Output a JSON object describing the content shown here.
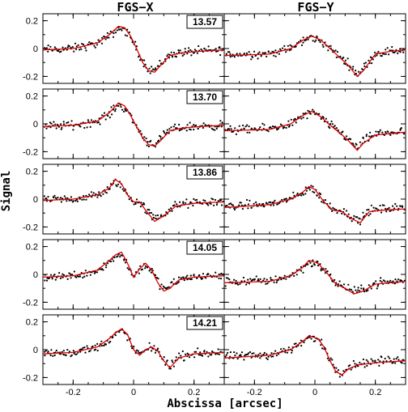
{
  "chart_data": {
    "type": "scatter",
    "columns": [
      {
        "title": "FGS−X"
      },
      {
        "title": "FGS−Y"
      }
    ],
    "xlabel": "Abscissa [arcsec]",
    "ylabel": "Signal",
    "xlim": [
      -0.3,
      0.3
    ],
    "ylim": [
      -0.25,
      0.25
    ],
    "xticks": [
      -0.2,
      0,
      0.2
    ],
    "xtick_labels": [
      "-0.2",
      "0",
      "0.2"
    ],
    "yticks": [
      -0.2,
      0,
      0.2
    ],
    "ytick_labels": [
      "-0.2",
      "0",
      "0.2"
    ],
    "epochs": [
      "13.57",
      "13.70",
      "13.86",
      "14.05",
      "14.21"
    ],
    "model_color": "#e00000",
    "point_color": "#000000",
    "panels": [
      {
        "column": "FGS−X",
        "epoch": "13.57",
        "model": {
          "x": [
            -0.3,
            -0.2,
            -0.12,
            -0.08,
            -0.05,
            -0.03,
            -0.01,
            0.01,
            0.03,
            0.05,
            0.07,
            0.09,
            0.12,
            0.16,
            0.22,
            0.3
          ],
          "y": [
            -0.01,
            0.0,
            0.04,
            0.1,
            0.16,
            0.15,
            0.09,
            0.0,
            -0.1,
            -0.16,
            -0.17,
            -0.12,
            -0.05,
            -0.03,
            -0.02,
            -0.01
          ]
        }
      },
      {
        "column": "FGS−Y",
        "epoch": "13.57",
        "model": {
          "x": [
            -0.3,
            -0.15,
            -0.08,
            -0.04,
            -0.01,
            0.02,
            0.05,
            0.08,
            0.11,
            0.14,
            0.16,
            0.2,
            0.25,
            0.3
          ],
          "y": [
            -0.05,
            -0.04,
            0.0,
            0.06,
            0.09,
            0.06,
            0.0,
            -0.06,
            -0.12,
            -0.2,
            -0.16,
            -0.04,
            -0.02,
            -0.01
          ]
        }
      },
      {
        "column": "FGS−X",
        "epoch": "13.70",
        "model": {
          "x": [
            -0.3,
            -0.2,
            -0.12,
            -0.08,
            -0.05,
            -0.03,
            -0.01,
            0.01,
            0.03,
            0.05,
            0.07,
            0.09,
            0.12,
            0.16,
            0.22,
            0.3
          ],
          "y": [
            -0.02,
            -0.01,
            0.02,
            0.08,
            0.15,
            0.13,
            0.06,
            -0.02,
            -0.1,
            -0.15,
            -0.16,
            -0.12,
            -0.05,
            -0.03,
            -0.02,
            -0.01
          ]
        }
      },
      {
        "column": "FGS−Y",
        "epoch": "13.70",
        "model": {
          "x": [
            -0.3,
            -0.15,
            -0.08,
            -0.04,
            -0.01,
            0.02,
            0.05,
            0.08,
            0.11,
            0.14,
            0.16,
            0.2,
            0.25,
            0.3
          ],
          "y": [
            -0.05,
            -0.04,
            0.0,
            0.06,
            0.09,
            0.05,
            -0.01,
            -0.06,
            -0.12,
            -0.19,
            -0.14,
            -0.08,
            -0.07,
            -0.06
          ]
        }
      },
      {
        "column": "FGS−X",
        "epoch": "13.86",
        "model": {
          "x": [
            -0.3,
            -0.2,
            -0.12,
            -0.08,
            -0.06,
            -0.04,
            -0.02,
            0.0,
            0.02,
            0.04,
            0.07,
            0.1,
            0.14,
            0.2,
            0.3
          ],
          "y": [
            -0.01,
            0.0,
            0.03,
            0.08,
            0.14,
            0.11,
            0.03,
            -0.02,
            -0.02,
            -0.08,
            -0.16,
            -0.12,
            -0.05,
            -0.03,
            -0.02
          ]
        }
      },
      {
        "column": "FGS−Y",
        "epoch": "13.86",
        "model": {
          "x": [
            -0.3,
            -0.15,
            -0.08,
            -0.04,
            -0.02,
            0.0,
            0.03,
            0.06,
            0.09,
            0.12,
            0.15,
            0.18,
            0.22,
            0.3
          ],
          "y": [
            -0.06,
            -0.04,
            0.0,
            0.05,
            0.09,
            0.07,
            -0.02,
            -0.08,
            -0.09,
            -0.14,
            -0.17,
            -0.09,
            -0.08,
            -0.07
          ]
        }
      },
      {
        "column": "FGS−X",
        "epoch": "14.05",
        "model": {
          "x": [
            -0.3,
            -0.2,
            -0.12,
            -0.08,
            -0.06,
            -0.04,
            -0.02,
            0.0,
            0.02,
            0.04,
            0.06,
            0.08,
            0.1,
            0.12,
            0.15,
            0.2,
            0.3
          ],
          "y": [
            -0.02,
            -0.01,
            0.03,
            0.1,
            0.14,
            0.16,
            0.08,
            -0.02,
            0.04,
            0.08,
            0.03,
            -0.06,
            -0.12,
            -0.1,
            -0.04,
            -0.02,
            -0.01
          ]
        }
      },
      {
        "column": "FGS−Y",
        "epoch": "14.05",
        "model": {
          "x": [
            -0.3,
            -0.15,
            -0.08,
            -0.04,
            -0.02,
            0.01,
            0.04,
            0.07,
            0.1,
            0.13,
            0.16,
            0.2,
            0.3
          ],
          "y": [
            -0.06,
            -0.05,
            -0.01,
            0.05,
            0.1,
            0.08,
            0.01,
            -0.07,
            -0.1,
            -0.14,
            -0.12,
            -0.07,
            -0.05
          ]
        }
      },
      {
        "column": "FGS−X",
        "epoch": "14.21",
        "model": {
          "x": [
            -0.3,
            -0.2,
            -0.12,
            -0.08,
            -0.06,
            -0.04,
            -0.02,
            0.0,
            0.02,
            0.04,
            0.06,
            0.08,
            0.1,
            0.12,
            0.15,
            0.2,
            0.3
          ],
          "y": [
            -0.03,
            -0.02,
            0.02,
            0.08,
            0.12,
            0.15,
            0.11,
            0.0,
            -0.04,
            0.0,
            0.02,
            -0.01,
            -0.08,
            -0.13,
            -0.06,
            -0.03,
            -0.02
          ]
        }
      },
      {
        "column": "FGS−Y",
        "epoch": "14.21",
        "model": {
          "x": [
            -0.3,
            -0.15,
            -0.08,
            -0.04,
            -0.02,
            0.01,
            0.03,
            0.05,
            0.07,
            0.09,
            0.11,
            0.14,
            0.18,
            0.22,
            0.3
          ],
          "y": [
            -0.06,
            -0.04,
            0.0,
            0.06,
            0.1,
            0.08,
            0.02,
            -0.08,
            -0.16,
            -0.18,
            -0.14,
            -0.11,
            -0.1,
            -0.09,
            -0.08
          ]
        }
      }
    ]
  }
}
